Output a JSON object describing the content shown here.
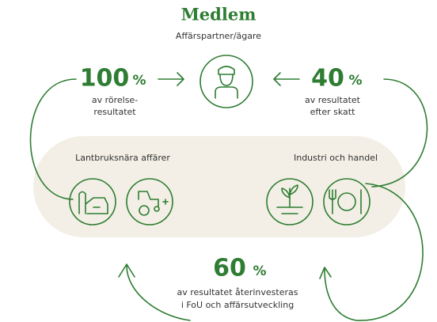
{
  "header": {
    "title": "Medlem",
    "subtitle": "Affärspartner/ägare"
  },
  "left_share": {
    "number": "100",
    "unit": "%",
    "line1": "av rörelse-",
    "line2": "resultatet"
  },
  "right_share": {
    "number": "40",
    "unit": "%",
    "line1": "av resultatet",
    "line2": "efter skatt"
  },
  "groups": [
    "Lantbruksnära affärer",
    "Industri och handel"
  ],
  "bottom_share": {
    "number": "60",
    "unit": "%",
    "line1": "av resultatet återinvesteras",
    "line2": "i FoU och affärsutveckling"
  }
}
